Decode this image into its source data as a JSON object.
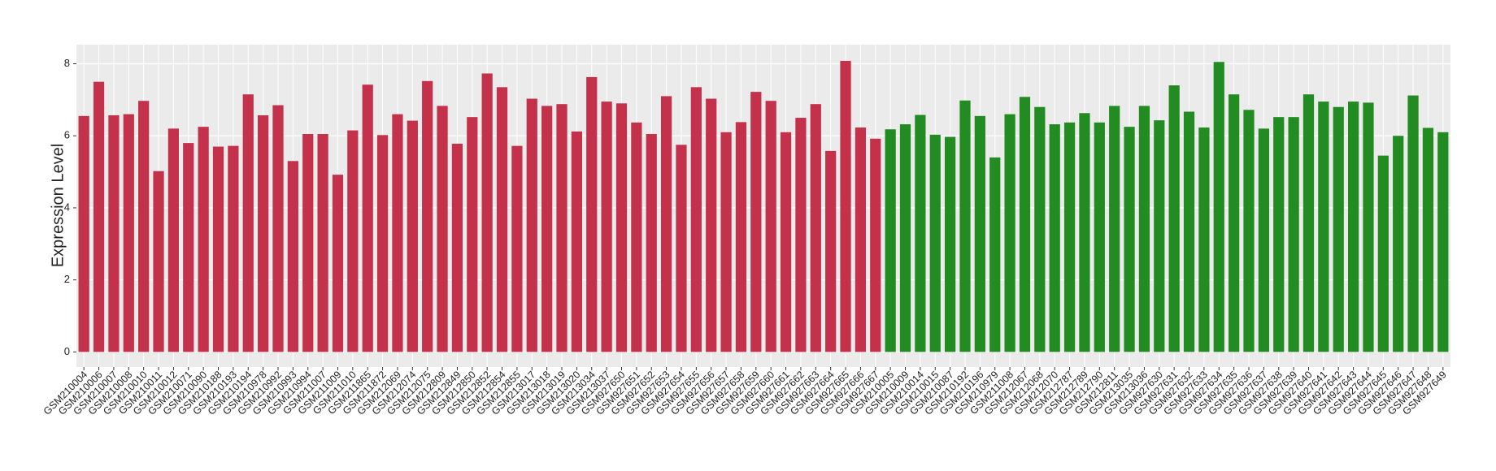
{
  "chart_data": {
    "type": "bar",
    "y_label": "Expression Level",
    "ylim": [
      -0.42,
      8.53
    ],
    "yticks": [
      0,
      2,
      4,
      6,
      8
    ],
    "grid": true,
    "groups": [
      {
        "color": "#c4314b",
        "categories": [
          "GSM210004",
          "GSM210006",
          "GSM210007",
          "GSM210008",
          "GSM210010",
          "GSM210011",
          "GSM210012",
          "GSM210071",
          "GSM210090",
          "GSM210188",
          "GSM210193",
          "GSM210194",
          "GSM210978",
          "GSM210992",
          "GSM210993",
          "GSM210994",
          "GSM211007",
          "GSM211009",
          "GSM211010",
          "GSM211865",
          "GSM211872",
          "GSM212069",
          "GSM212074",
          "GSM212075",
          "GSM212809",
          "GSM212849",
          "GSM212850",
          "GSM212852",
          "GSM212854",
          "GSM212855",
          "GSM213017",
          "GSM213018",
          "GSM213019",
          "GSM213020",
          "GSM213034",
          "GSM213037",
          "GSM927650",
          "GSM927651",
          "GSM927652",
          "GSM927653",
          "GSM927654",
          "GSM927655",
          "GSM927656",
          "GSM927657",
          "GSM927658",
          "GSM927659",
          "GSM927660",
          "GSM927661",
          "GSM927662",
          "GSM927663",
          "GSM927664",
          "GSM927665",
          "GSM927666",
          "GSM927667"
        ],
        "values": [
          6.55,
          7.5,
          6.57,
          6.6,
          6.97,
          5.02,
          6.2,
          5.8,
          6.25,
          5.7,
          5.72,
          7.15,
          6.57,
          6.85,
          5.3,
          6.05,
          6.05,
          4.92,
          6.15,
          7.42,
          6.02,
          6.6,
          6.42,
          7.52,
          6.83,
          5.78,
          6.52,
          7.73,
          7.35,
          5.72,
          7.03,
          6.83,
          6.88,
          6.12,
          7.63,
          6.95,
          6.9,
          6.37,
          6.05,
          7.1,
          5.75,
          7.35,
          7.03,
          6.1,
          6.38,
          7.22,
          6.97,
          6.1,
          6.5,
          6.88,
          5.58,
          8.08,
          6.23,
          5.92
        ]
      },
      {
        "color": "#228b22",
        "categories": [
          "GSM210005",
          "GSM210009",
          "GSM210014",
          "GSM210015",
          "GSM210087",
          "GSM210192",
          "GSM210196",
          "GSM210979",
          "GSM211008",
          "GSM212067",
          "GSM212068",
          "GSM212070",
          "GSM212787",
          "GSM212789",
          "GSM212790",
          "GSM212811",
          "GSM213035",
          "GSM213036",
          "GSM927630",
          "GSM927631",
          "GSM927632",
          "GSM927633",
          "GSM927634",
          "GSM927635",
          "GSM927636",
          "GSM927637",
          "GSM927638",
          "GSM927639",
          "GSM927640",
          "GSM927641",
          "GSM927642",
          "GSM927643",
          "GSM927644",
          "GSM927645",
          "GSM927646",
          "GSM927647",
          "GSM927648",
          "GSM927649"
        ],
        "values": [
          6.18,
          6.32,
          6.58,
          6.03,
          5.97,
          6.98,
          6.55,
          5.4,
          6.6,
          7.08,
          6.8,
          6.32,
          6.37,
          6.63,
          6.37,
          6.83,
          6.25,
          6.83,
          6.43,
          7.4,
          6.67,
          6.23,
          8.05,
          7.15,
          6.72,
          6.2,
          6.52,
          6.52,
          7.15,
          6.95,
          6.8,
          6.95,
          6.92,
          5.45,
          6.0,
          7.12,
          6.22,
          6.1
        ]
      }
    ]
  }
}
